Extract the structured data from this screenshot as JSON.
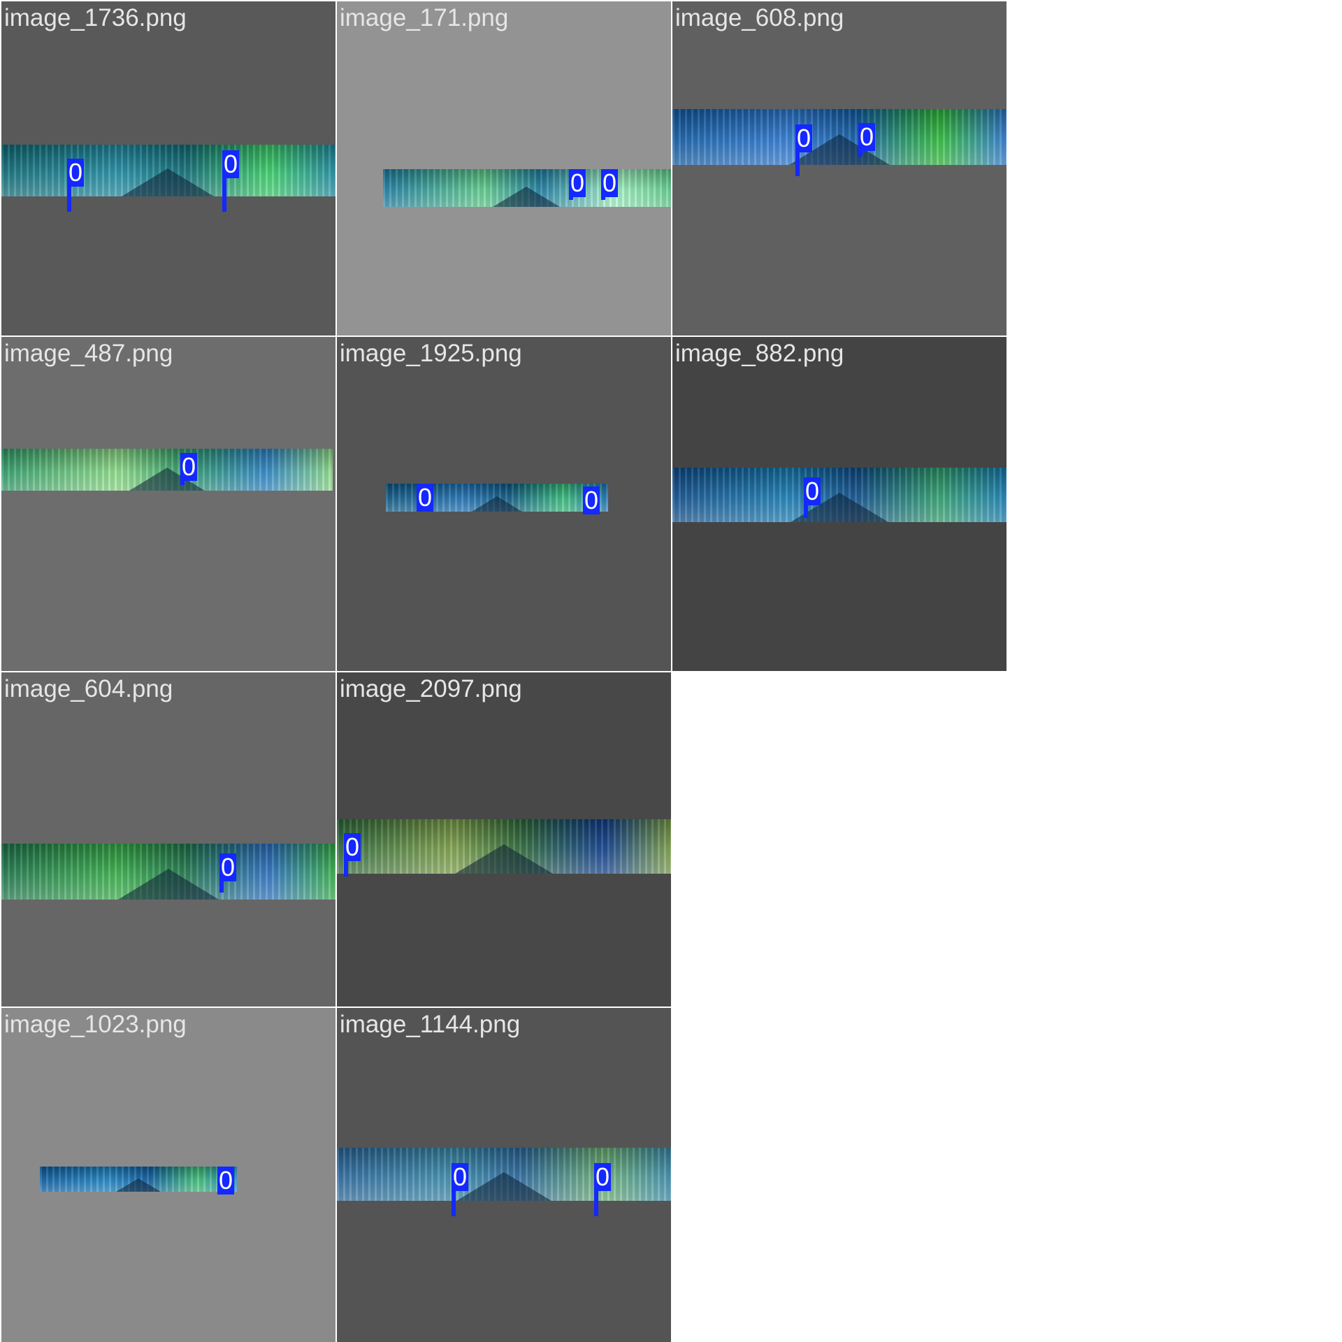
{
  "page": {
    "background": "#ffffff"
  },
  "tiles": [
    {
      "label": "image_1736.png",
      "bg": "#595959",
      "colors": [
        "#0e6f7a",
        "#1f8fa6",
        "#3bd36a"
      ],
      "detections": [
        {
          "label": "0"
        },
        {
          "label": "0"
        }
      ]
    },
    {
      "label": "image_171.png",
      "bg": "#939393",
      "colors": [
        "#1b7fa5",
        "#5fd08e",
        "#a6f7c8"
      ],
      "detections": [
        {
          "label": "0"
        },
        {
          "label": "0"
        }
      ]
    },
    {
      "label": "image_608.png",
      "bg": "#606060",
      "colors": [
        "#0f5da8",
        "#2d7bd6",
        "#2ebf3a"
      ],
      "detections": [
        {
          "label": "0"
        },
        {
          "label": "0"
        }
      ]
    },
    {
      "label": "image_487.png",
      "bg": "#6d6d6d",
      "colors": [
        "#2f9f6a",
        "#8fe08a",
        "#2c86c9"
      ],
      "detections": [
        {
          "label": "0"
        }
      ]
    },
    {
      "label": "image_1925.png",
      "bg": "#545454",
      "colors": [
        "#0c5a87",
        "#1e74b8",
        "#36c07c"
      ],
      "detections": [
        {
          "label": "0"
        },
        {
          "label": "0"
        }
      ]
    },
    {
      "label": "image_882.png",
      "bg": "#444444",
      "colors": [
        "#0d4f8f",
        "#177fb8",
        "#2fa36f"
      ],
      "detections": [
        {
          "label": "0"
        }
      ]
    },
    {
      "label": "image_604.png",
      "bg": "#666666",
      "colors": [
        "#1f7a4e",
        "#38b44c",
        "#2c74c7"
      ],
      "detections": [
        {
          "label": "0"
        }
      ]
    },
    {
      "label": "image_2097.png",
      "bg": "#484848",
      "colors": [
        "#2d6b3a",
        "#7fa34a",
        "#0e3f90"
      ],
      "detections": [
        {
          "label": "0"
        }
      ]
    },
    {
      "label": "image_1023.png",
      "bg": "#8a8a8a",
      "colors": [
        "#0b5ea5",
        "#1c86c6",
        "#40c37a"
      ],
      "detections": [
        {
          "label": "0"
        }
      ]
    },
    {
      "label": "image_1144.png",
      "bg": "#545454",
      "colors": [
        "#2a6aa0",
        "#3c8fb0",
        "#6fb67a"
      ],
      "detections": [
        {
          "label": "0"
        },
        {
          "label": "0"
        }
      ]
    }
  ]
}
